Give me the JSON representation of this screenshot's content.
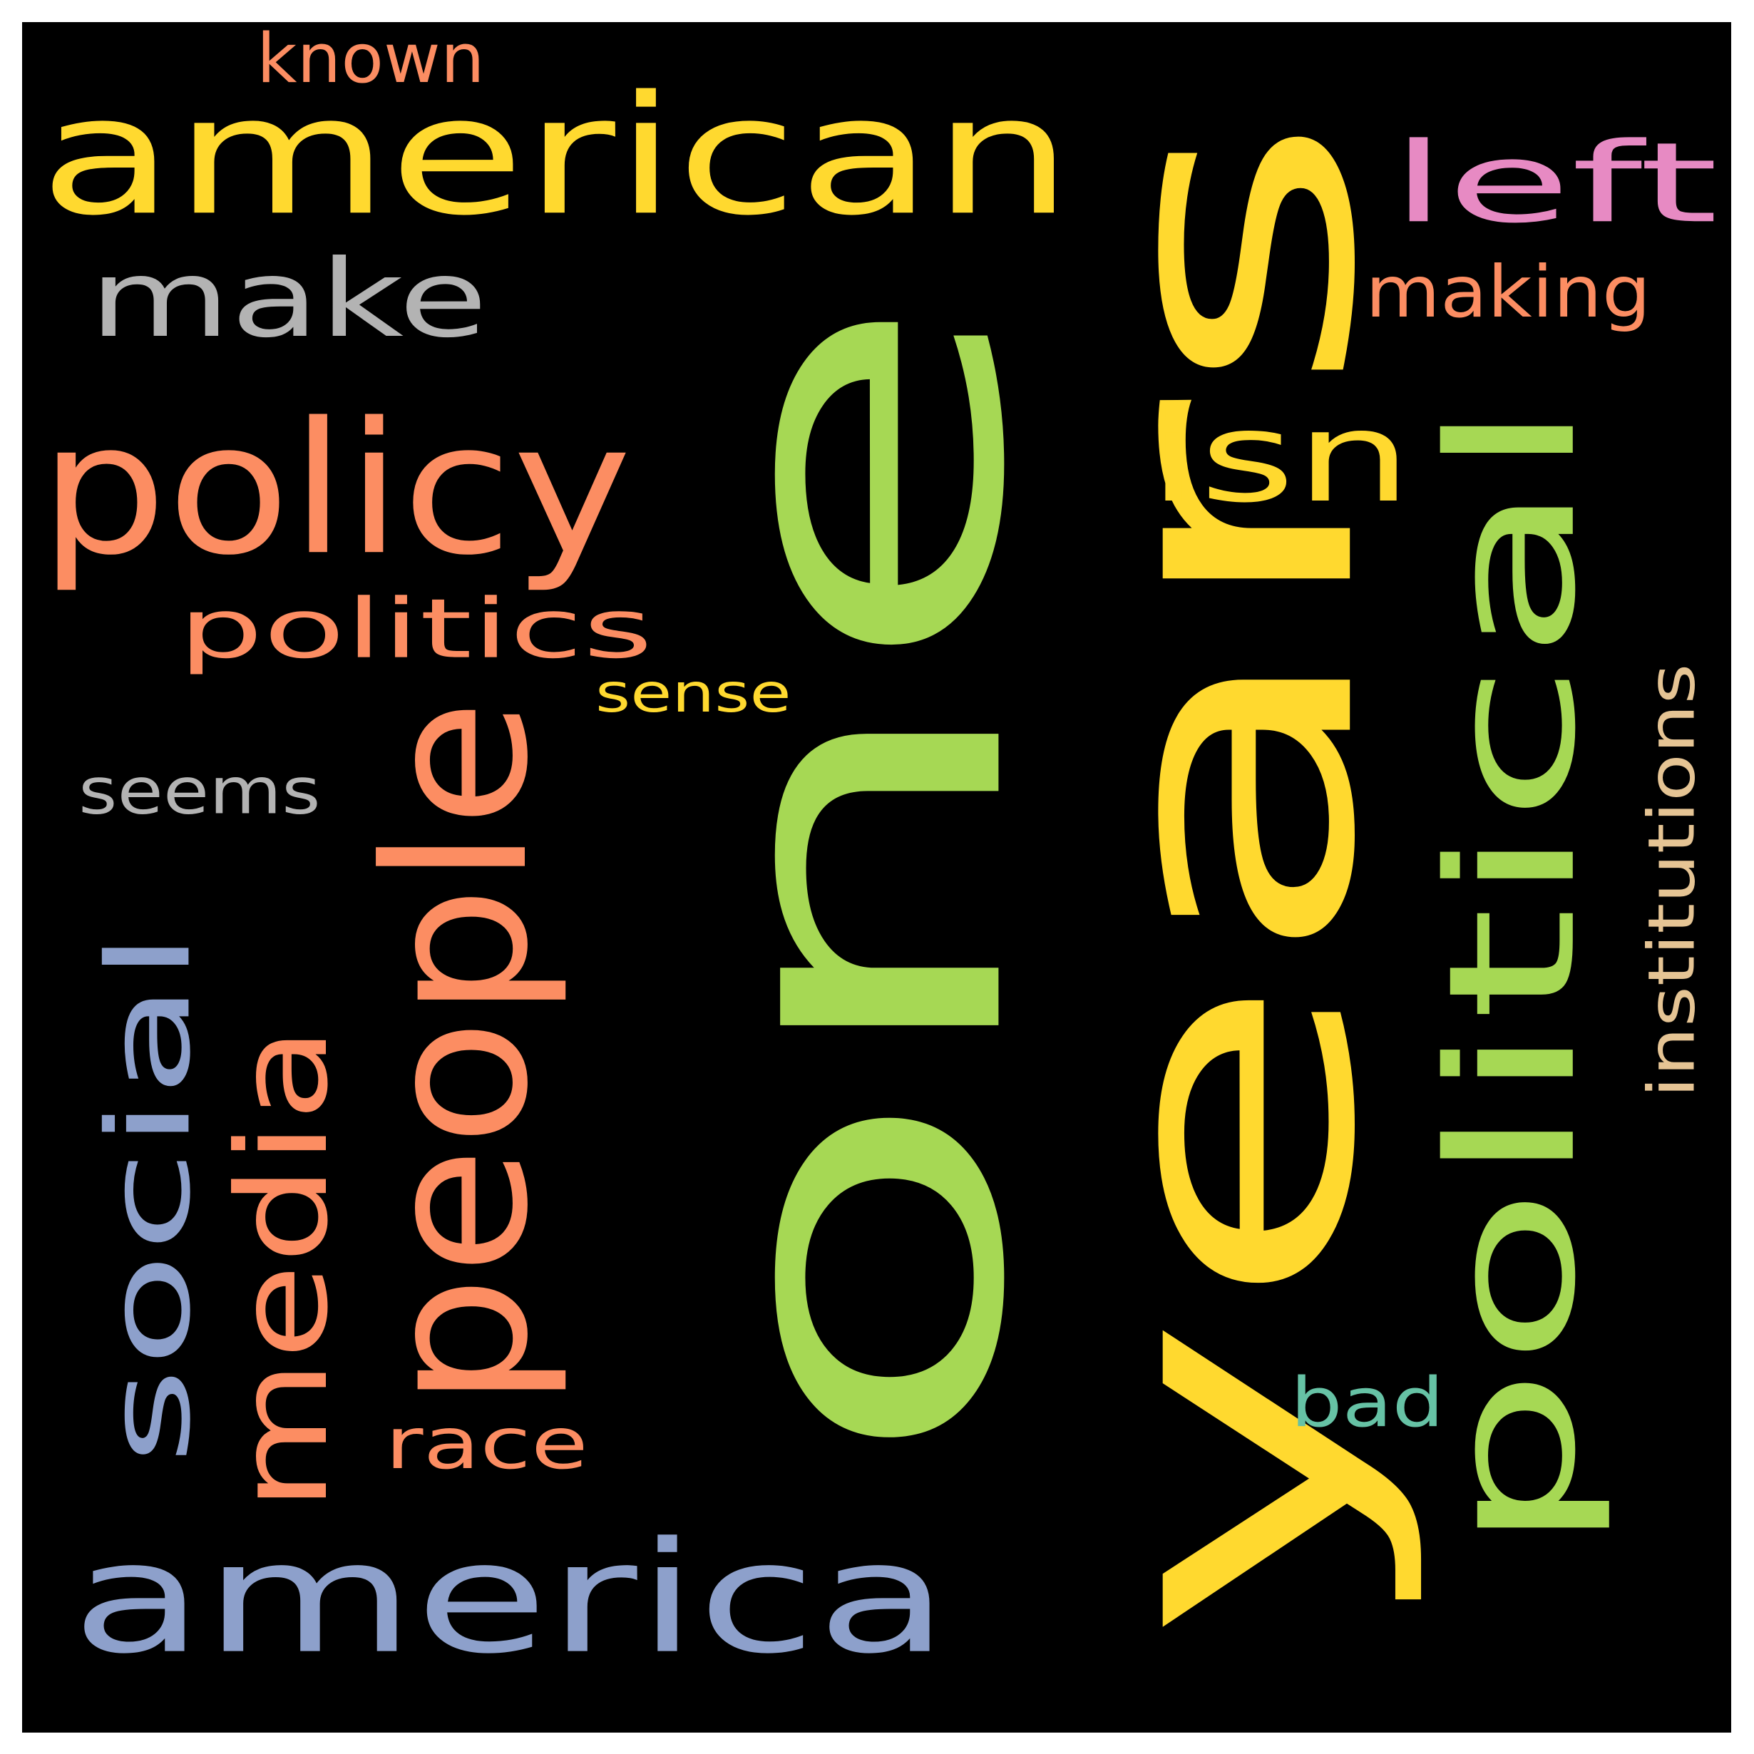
{
  "background_color": "#000000",
  "page_color": "#ffffff",
  "words": [
    {
      "text": "one",
      "color": "#a6d854"
    },
    {
      "text": "years",
      "color": "#ffd92f"
    },
    {
      "text": "american",
      "color": "#ffd92f"
    },
    {
      "text": "america",
      "color": "#8da0cb"
    },
    {
      "text": "people",
      "color": "#fc8d62"
    },
    {
      "text": "political",
      "color": "#a6d854"
    },
    {
      "text": "policy",
      "color": "#fc8d62"
    },
    {
      "text": "make",
      "color": "#b3b3b3"
    },
    {
      "text": "left",
      "color": "#e78ac3"
    },
    {
      "text": "isn",
      "color": "#ffd92f"
    },
    {
      "text": "social",
      "color": "#8da0cb"
    },
    {
      "text": "media",
      "color": "#fc8d62"
    },
    {
      "text": "politics",
      "color": "#fc8d62"
    },
    {
      "text": "making",
      "color": "#fc8d62"
    },
    {
      "text": "race",
      "color": "#fc8d62"
    },
    {
      "text": "bad",
      "color": "#66c2a5"
    },
    {
      "text": "seems",
      "color": "#b3b3b3"
    },
    {
      "text": "known",
      "color": "#fc8d62"
    },
    {
      "text": "sense",
      "color": "#ffd92f"
    },
    {
      "text": "institutions",
      "color": "#e5c494"
    }
  ]
}
